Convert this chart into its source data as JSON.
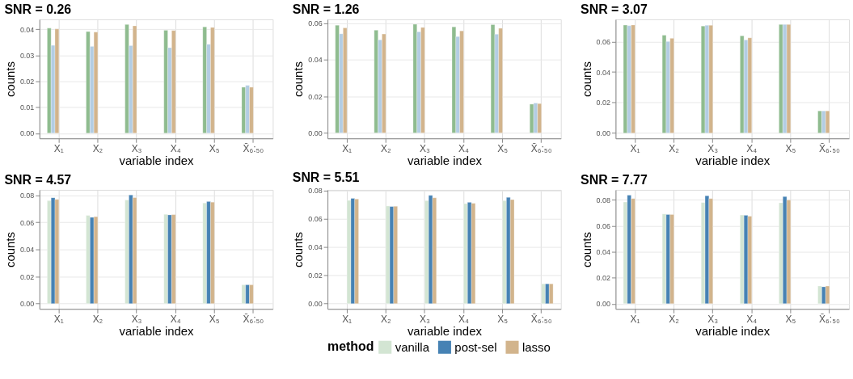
{
  "chart_data": [
    {
      "type": "bar",
      "title": "SNR =  0.26",
      "xlabel": "variable index",
      "ylabel": "counts",
      "categories": [
        "X₁",
        "X₂",
        "X₃",
        "X₄",
        "X₅",
        "X̄₆:₅₀"
      ],
      "ylim": [
        -0.002,
        0.0438
      ],
      "yticks": [
        {
          "value": 0,
          "label": "0.00"
        },
        {
          "value": 0.01,
          "label": "0.01"
        },
        {
          "value": 0.02,
          "label": "0.02"
        },
        {
          "value": 0.03,
          "label": "0.03"
        },
        {
          "value": 0.04,
          "label": "0.04"
        }
      ],
      "grid": true,
      "series": [
        {
          "color": "#8fbc8f",
          "values": [
            0.0404,
            0.0391,
            0.0418,
            0.0396,
            0.0409,
            0.0177
          ]
        },
        {
          "color": "#b3cde3",
          "values": [
            0.0338,
            0.0334,
            0.0337,
            0.0329,
            0.0342,
            0.0184
          ]
        },
        {
          "color": "#d2b48c",
          "values": [
            0.0401,
            0.0389,
            0.0413,
            0.0395,
            0.0407,
            0.0177
          ]
        }
      ]
    },
    {
      "type": "bar",
      "title": "SNR =  1.26",
      "xlabel": "variable index",
      "ylabel": "counts",
      "categories": [
        "X₁",
        "X₂",
        "X₃",
        "X₄",
        "X₅",
        "X̄₆:₅₀"
      ],
      "ylim": [
        -0.003,
        0.062
      ],
      "yticks": [
        {
          "value": 0,
          "label": "0.00"
        },
        {
          "value": 0.02,
          "label": "0.02"
        },
        {
          "value": 0.04,
          "label": "0.04"
        },
        {
          "value": 0.06,
          "label": "0.06"
        }
      ],
      "grid": true,
      "series": [
        {
          "color": "#8fbc8f",
          "values": [
            0.0588,
            0.0561,
            0.0593,
            0.0579,
            0.0591,
            0.0157
          ]
        },
        {
          "color": "#b3cde3",
          "values": [
            0.0541,
            0.0508,
            0.0552,
            0.0526,
            0.0539,
            0.0163
          ]
        },
        {
          "color": "#d2b48c",
          "values": [
            0.0573,
            0.054,
            0.0576,
            0.0557,
            0.0571,
            0.016
          ]
        }
      ]
    },
    {
      "type": "bar",
      "title": "SNR =  3.07",
      "xlabel": "variable index",
      "ylabel": "counts",
      "categories": [
        "X₁",
        "X₂",
        "X₃",
        "X₄",
        "X₅",
        "X̄₆:₅₀"
      ],
      "ylim": [
        -0.0035,
        0.0745
      ],
      "yticks": [
        {
          "value": 0,
          "label": "0.00"
        },
        {
          "value": 0.02,
          "label": "0.02"
        },
        {
          "value": 0.04,
          "label": "0.04"
        },
        {
          "value": 0.06,
          "label": "0.06"
        }
      ],
      "grid": true,
      "series": [
        {
          "color": "#8fbc8f",
          "values": [
            0.0707,
            0.0641,
            0.0701,
            0.0637,
            0.0711,
            0.0145
          ]
        },
        {
          "color": "#b3cde3",
          "values": [
            0.0703,
            0.06,
            0.0706,
            0.061,
            0.0712,
            0.0145
          ]
        },
        {
          "color": "#d2b48c",
          "values": [
            0.0708,
            0.0621,
            0.0706,
            0.0624,
            0.0711,
            0.0145
          ]
        }
      ]
    },
    {
      "type": "bar",
      "title": "SNR =  4.57",
      "xlabel": "variable index",
      "ylabel": "counts",
      "categories": [
        "X₁",
        "X₂",
        "X₃",
        "X₄",
        "X₅",
        "X̄₆:₅₀"
      ],
      "ylim": [
        -0.0039,
        0.084
      ],
      "yticks": [
        {
          "value": 0,
          "label": "0.00"
        },
        {
          "value": 0.02,
          "label": "0.02"
        },
        {
          "value": 0.04,
          "label": "0.04"
        },
        {
          "value": 0.06,
          "label": "0.06"
        },
        {
          "value": 0.08,
          "label": "0.08"
        }
      ],
      "grid": true,
      "series": [
        {
          "color": "#d3e5d3",
          "values": [
            0.0761,
            0.0651,
            0.0765,
            0.0659,
            0.0743,
            0.0139
          ]
        },
        {
          "color": "#4682b4",
          "values": [
            0.0782,
            0.0637,
            0.0802,
            0.0655,
            0.0754,
            0.0139
          ]
        },
        {
          "color": "#d2b48c",
          "values": [
            0.0769,
            0.0642,
            0.0783,
            0.0657,
            0.0749,
            0.0139
          ]
        }
      ]
    },
    {
      "type": "bar",
      "title": "SNR =  5.51",
      "xlabel": "variable index",
      "ylabel": "counts",
      "categories": [
        "X₁",
        "X₂",
        "X₃",
        "X₄",
        "X₅",
        "X̄₆:₅₀"
      ],
      "ylim": [
        -0.0037,
        0.0804
      ],
      "yticks": [
        {
          "value": 0,
          "label": "0.00"
        },
        {
          "value": 0.02,
          "label": "0.02"
        },
        {
          "value": 0.04,
          "label": "0.04"
        },
        {
          "value": 0.06,
          "label": "0.06"
        },
        {
          "value": 0.08,
          "label": "0.08"
        }
      ],
      "grid": true,
      "legend": "bottom",
      "legend_title": "method",
      "series": [
        {
          "name": "vanilla",
          "color": "#d3e5d3",
          "values": [
            0.073,
            0.069,
            0.0728,
            0.0707,
            0.0728,
            0.014
          ]
        },
        {
          "name": "post-sel",
          "color": "#4682b4",
          "values": [
            0.0744,
            0.0686,
            0.0765,
            0.0716,
            0.0751,
            0.014
          ]
        },
        {
          "name": "lasso",
          "color": "#d2b48c",
          "values": [
            0.0739,
            0.0688,
            0.0748,
            0.0709,
            0.0735,
            0.014
          ]
        }
      ]
    },
    {
      "type": "bar",
      "title": "SNR =  7.77",
      "xlabel": "variable index",
      "ylabel": "counts",
      "categories": [
        "X₁",
        "X₂",
        "X₃",
        "X₄",
        "X₅",
        "X̄₆:₅₀"
      ],
      "ylim": [
        -0.004,
        0.0877
      ],
      "yticks": [
        {
          "value": 0,
          "label": "0.00"
        },
        {
          "value": 0.02,
          "label": "0.02"
        },
        {
          "value": 0.04,
          "label": "0.04"
        },
        {
          "value": 0.06,
          "label": "0.06"
        },
        {
          "value": 0.08,
          "label": "0.08"
        }
      ],
      "grid": true,
      "series": [
        {
          "color": "#d3e5d3",
          "values": [
            0.0783,
            0.0691,
            0.0779,
            0.0683,
            0.0777,
            0.0136
          ]
        },
        {
          "color": "#4682b4",
          "values": [
            0.0836,
            0.0687,
            0.0831,
            0.0681,
            0.0825,
            0.013
          ]
        },
        {
          "color": "#d2b48c",
          "values": [
            0.081,
            0.0687,
            0.081,
            0.0674,
            0.0798,
            0.0136
          ]
        }
      ]
    }
  ]
}
